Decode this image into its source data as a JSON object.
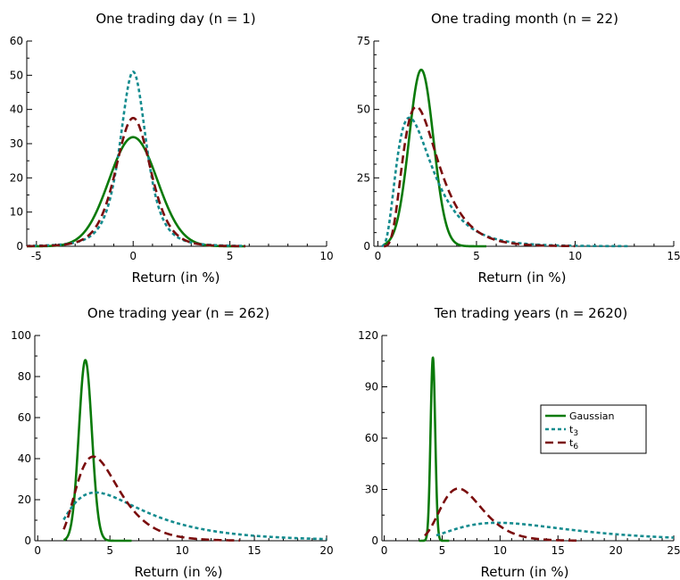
{
  "colors": {
    "gaussian": "#0a7a0a",
    "t3": "#138b8e",
    "t6": "#7a0d0d"
  },
  "legend": {
    "entries": [
      {
        "key": "gaussian",
        "label": "Gaussian",
        "sub": ""
      },
      {
        "key": "t3",
        "label": "t",
        "sub": "3"
      },
      {
        "key": "t6",
        "label": "t",
        "sub": "6"
      }
    ]
  },
  "chart_data": [
    {
      "type": "line",
      "title": "One trading day (n = 1)",
      "xlabel": "Return (in %)",
      "ylabel": "",
      "xlim": [
        -5.5,
        10
      ],
      "ylim": [
        0,
        60
      ],
      "xticks": [
        -5,
        0,
        5,
        10
      ],
      "yticks": [
        0,
        10,
        20,
        30,
        40,
        50,
        60
      ],
      "legend": false,
      "series": [
        {
          "key": "gaussian",
          "dist": "normal",
          "center": 0,
          "peak": 31.9,
          "spread": 1.25,
          "xrange": [
            -5.5,
            5.8
          ]
        },
        {
          "key": "t3",
          "dist": "student",
          "df": 3,
          "center": 0,
          "peak": 51,
          "spread": 0.72,
          "xrange": [
            -5.5,
            5.8
          ]
        },
        {
          "key": "t6",
          "dist": "student",
          "df": 6,
          "center": 0,
          "peak": 37.5,
          "spread": 0.93,
          "xrange": [
            -5.5,
            5.8
          ]
        }
      ]
    },
    {
      "type": "line",
      "title": "One trading month (n = 22)",
      "xlabel": "Return (in %)",
      "ylabel": "",
      "xlim": [
        -0.2,
        15
      ],
      "ylim": [
        0,
        75
      ],
      "xticks": [
        0,
        5,
        10,
        15
      ],
      "yticks": [
        0,
        25,
        50,
        75
      ],
      "legend": false,
      "series": [
        {
          "key": "gaussian",
          "dist": "normal",
          "center": 2.2,
          "peak": 64.5,
          "spread": 0.62,
          "xrange": [
            0.3,
            5.5
          ]
        },
        {
          "key": "t3",
          "dist": "lognormal",
          "mode": 1.6,
          "peak": 47,
          "sigma": 0.55,
          "xrange": [
            0.2,
            12.8
          ]
        },
        {
          "key": "t6",
          "dist": "lognormal",
          "mode": 1.95,
          "peak": 51,
          "sigma": 0.45,
          "xrange": [
            0.3,
            10
          ]
        }
      ]
    },
    {
      "type": "line",
      "title": "One trading year (n = 262)",
      "xlabel": "Return (in %)",
      "ylabel": "",
      "xlim": [
        -0.2,
        20
      ],
      "ylim": [
        0,
        100
      ],
      "xticks": [
        0,
        5,
        10,
        15,
        20
      ],
      "yticks": [
        0,
        20,
        40,
        60,
        80,
        100
      ],
      "legend": false,
      "series": [
        {
          "key": "gaussian",
          "dist": "normal",
          "center": 3.3,
          "peak": 88,
          "spread": 0.45,
          "xrange": [
            1.8,
            6.5
          ]
        },
        {
          "key": "t3",
          "dist": "lognormal",
          "mode": 4.0,
          "peak": 23.5,
          "sigma": 0.62,
          "xrange": [
            1.8,
            20
          ]
        },
        {
          "key": "t6",
          "dist": "lognormal",
          "mode": 3.85,
          "peak": 41,
          "sigma": 0.38,
          "xrange": [
            1.8,
            14
          ]
        }
      ]
    },
    {
      "type": "line",
      "title": "Ten trading years (n = 2620)",
      "xlabel": "Return (in %)",
      "ylabel": "",
      "xlim": [
        -0.2,
        25
      ],
      "ylim": [
        0,
        120
      ],
      "xticks": [
        0,
        5,
        10,
        15,
        20,
        25
      ],
      "yticks": [
        0,
        30,
        60,
        90,
        120
      ],
      "legend": true,
      "legend_position": "right",
      "series": [
        {
          "key": "gaussian",
          "dist": "normal",
          "center": 4.2,
          "peak": 107,
          "spread": 0.2,
          "xrange": [
            3.0,
            5.6
          ]
        },
        {
          "key": "t3",
          "dist": "lognormal",
          "mode": 9.8,
          "peak": 10.5,
          "sigma": 0.5,
          "xrange": [
            4.5,
            25
          ]
        },
        {
          "key": "t6",
          "dist": "lognormal",
          "mode": 6.4,
          "peak": 30.5,
          "sigma": 0.28,
          "xrange": [
            3.5,
            17
          ]
        }
      ]
    }
  ]
}
